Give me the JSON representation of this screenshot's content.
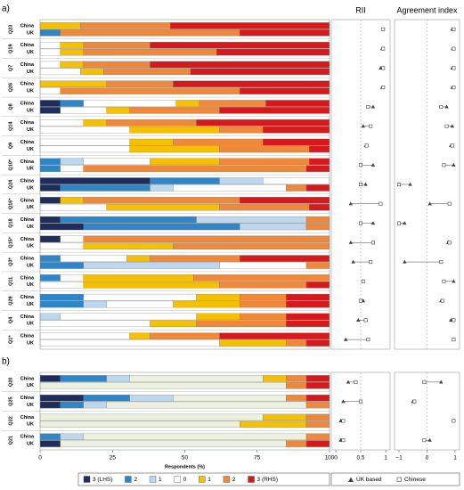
{
  "chart_data": [
    {
      "type": "bar",
      "stacked": true,
      "horizontal": true,
      "xlabel": "Respondents (%)",
      "xlim": [
        0,
        100
      ],
      "xticks": [
        0,
        25,
        50,
        75,
        100
      ],
      "groups": [
        "China",
        "UK"
      ],
      "series": [
        {
          "name": "3 (LHS)",
          "color": "#1f2d5c"
        },
        {
          "name": "2",
          "color": "#2e86c8"
        },
        {
          "name": "1",
          "color": "#bdd7ee"
        },
        {
          "name": "0",
          "color": "#ffffff"
        },
        {
          "name": "1",
          "color": "#f5c000"
        },
        {
          "name": "2",
          "color": "#f0883a"
        },
        {
          "name": "3 (RHS)",
          "color": "#d7191c"
        }
      ],
      "panels": [
        {
          "label": "a)",
          "colors": [
            "#1f2d5c",
            "#2e86c8",
            "#bdd7ee",
            "#ffffff",
            "#f5c000",
            "#f0883a",
            "#d7191c"
          ],
          "questions": [
            "Q23",
            "Q19",
            "Q7",
            "Q26",
            "Q8",
            "Q14",
            "Q9",
            "Q10*",
            "Q24",
            "Q16*",
            "Q18",
            "Q15*",
            "Q3*",
            "Q11",
            "Q29",
            "Q4",
            "Q1*"
          ],
          "values": [
            [
              [
                0,
                0,
                0,
                0,
                14,
                31,
                55
              ],
              [
                0,
                7,
                0,
                0,
                0,
                62,
                31
              ]
            ],
            [
              [
                0,
                0,
                0,
                7,
                8,
                23,
                62
              ],
              [
                0,
                0,
                0,
                7,
                8,
                46,
                39
              ]
            ],
            [
              [
                0,
                0,
                0,
                7,
                8,
                23,
                62
              ],
              [
                0,
                0,
                0,
                14,
                8,
                30,
                48
              ]
            ],
            [
              [
                0,
                0,
                0,
                0,
                23,
                23,
                54
              ],
              [
                0,
                0,
                0,
                7,
                0,
                62,
                31
              ]
            ],
            [
              [
                7,
                8,
                0,
                32,
                8,
                23,
                22
              ],
              [
                7,
                0,
                0,
                16,
                8,
                31,
                38
              ]
            ],
            [
              [
                0,
                0,
                0,
                15,
                8,
                31,
                46
              ],
              [
                0,
                0,
                0,
                31,
                31,
                15,
                23
              ]
            ],
            [
              [
                0,
                0,
                0,
                31,
                15,
                31,
                23
              ],
              [
                0,
                0,
                0,
                31,
                31,
                31,
                7
              ]
            ],
            [
              [
                0,
                7,
                8,
                23,
                24,
                31,
                7
              ],
              [
                0,
                7,
                0,
                8,
                0,
                77,
                8
              ]
            ],
            [
              [
                38,
                24,
                15,
                23,
                0,
                0,
                0
              ],
              [
                7,
                31,
                8,
                39,
                0,
                7,
                8
              ]
            ],
            [
              [
                7,
                0,
                0,
                0,
                8,
                54,
                31
              ],
              [
                0,
                0,
                0,
                23,
                39,
                31,
                7
              ]
            ],
            [
              [
                7,
                47,
                38,
                0,
                0,
                8,
                0
              ],
              [
                15,
                54,
                23,
                0,
                0,
                8,
                0
              ]
            ],
            [
              [
                7,
                0,
                0,
                8,
                0,
                85,
                0
              ],
              [
                0,
                0,
                0,
                15,
                31,
                54,
                0
              ]
            ],
            [
              [
                0,
                7,
                0,
                23,
                8,
                31,
                31
              ],
              [
                0,
                15,
                47,
                30,
                0,
                8,
                0
              ]
            ],
            [
              [
                0,
                7,
                0,
                8,
                38,
                47,
                0
              ],
              [
                0,
                0,
                0,
                15,
                47,
                30,
                8
              ]
            ],
            [
              [
                0,
                15,
                0,
                39,
                15,
                16,
                15
              ],
              [
                0,
                15,
                8,
                23,
                23,
                16,
                15
              ]
            ],
            [
              [
                0,
                0,
                7,
                47,
                15,
                16,
                15
              ],
              [
                0,
                0,
                0,
                38,
                16,
                31,
                15
              ]
            ],
            [
              [
                0,
                0,
                0,
                31,
                7,
                24,
                38
              ],
              [
                0,
                0,
                0,
                62,
                23,
                7,
                8
              ]
            ]
          ]
        },
        {
          "label": "b)",
          "colors": [
            "#1f2d5c",
            "#2e86c8",
            "#bdd7ee",
            "#ebf1de",
            "#f5c000",
            "#f0883a",
            "#d7191c"
          ],
          "questions": [
            "Q20",
            "Q25",
            "Q22",
            "Q21"
          ],
          "values": [
            [
              [
                7,
                16,
                8,
                46,
                8,
                7,
                8
              ],
              [
                0,
                0,
                0,
                85,
                0,
                7,
                8
              ]
            ],
            [
              [
                15,
                16,
                15,
                39,
                0,
                7,
                8
              ],
              [
                7,
                8,
                8,
                69,
                0,
                8,
                0
              ]
            ],
            [
              [
                0,
                0,
                0,
                77,
                15,
                8,
                0
              ],
              [
                0,
                0,
                0,
                69,
                23,
                8,
                0
              ]
            ],
            [
              [
                0,
                7,
                8,
                77,
                0,
                8,
                0
              ],
              [
                7,
                0,
                0,
                78,
                0,
                7,
                8
              ]
            ]
          ]
        }
      ]
    },
    {
      "type": "scatter",
      "title": "RII",
      "xlim": [
        0,
        1
      ],
      "xticks": [
        0,
        0.5,
        1
      ],
      "series": [
        {
          "name": "UK based",
          "marker": "triangle",
          "values": [
            0.95,
            0.93,
            0.9,
            0.93,
            0.75,
            0.55,
            0.6,
            0.75,
            0.6,
            0.3,
            0.75,
            0.3,
            0.35,
            0.55,
            0.55,
            0.45,
            0.2,
            0.25,
            0.15,
            0.1,
            0.1
          ]
        },
        {
          "name": "Chinese",
          "marker": "square",
          "values": [
            0.95,
            0.95,
            0.95,
            0.95,
            0.65,
            0.7,
            0.62,
            0.5,
            0.5,
            0.9,
            0.5,
            0.75,
            0.7,
            0.55,
            0.5,
            0.6,
            0.65,
            0.4,
            0.5,
            0.15,
            0.15
          ]
        }
      ]
    },
    {
      "type": "scatter",
      "title": "Agreement index",
      "xlim": [
        -1,
        1
      ],
      "xticks": [
        {
          "value": -1,
          "label": "−1"
        },
        0,
        1
      ],
      "series": [
        {
          "marker": "triangle",
          "values": [
            0.9,
            0.92,
            0.9,
            0.9,
            0.7,
            0.9,
            0.85,
            0.95,
            -0.6,
            0.1,
            -0.8,
            0.75,
            -0.8,
            0.95,
            0.5,
            0.85,
            0.95,
            0.5,
            -0.5,
            0.95,
            0.1
          ]
        },
        {
          "marker": "square",
          "values": [
            0.95,
            0.95,
            0.95,
            0.95,
            0.5,
            0.7,
            0.9,
            0.6,
            -1,
            0.8,
            -1,
            0.8,
            0.5,
            0.6,
            0.55,
            0.95,
            0.95,
            -0.1,
            -0.45,
            0.95,
            -0.1
          ]
        }
      ]
    }
  ]
}
